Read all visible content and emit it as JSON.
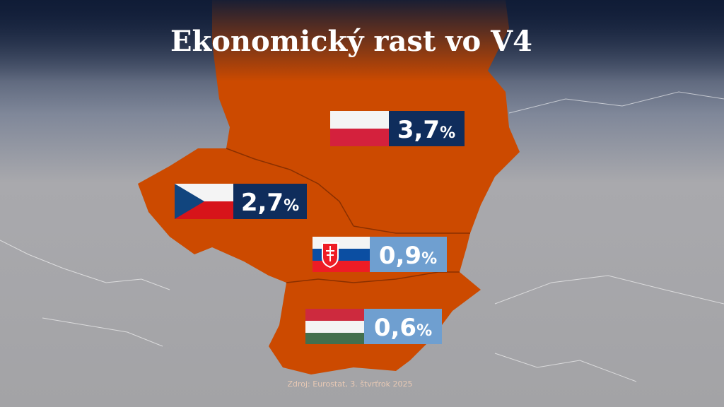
{
  "title": "Ekonomický rast vo V4",
  "source": "Zdroj: Eurostat, 3. štvrťrok 2025",
  "countries": [
    {
      "value": "3,7",
      "unit": "%"
    },
    {
      "value": "2,7",
      "unit": "%"
    },
    {
      "value": "0,9",
      "unit": "%"
    },
    {
      "value": "0,6",
      "unit": "%"
    }
  ]
}
